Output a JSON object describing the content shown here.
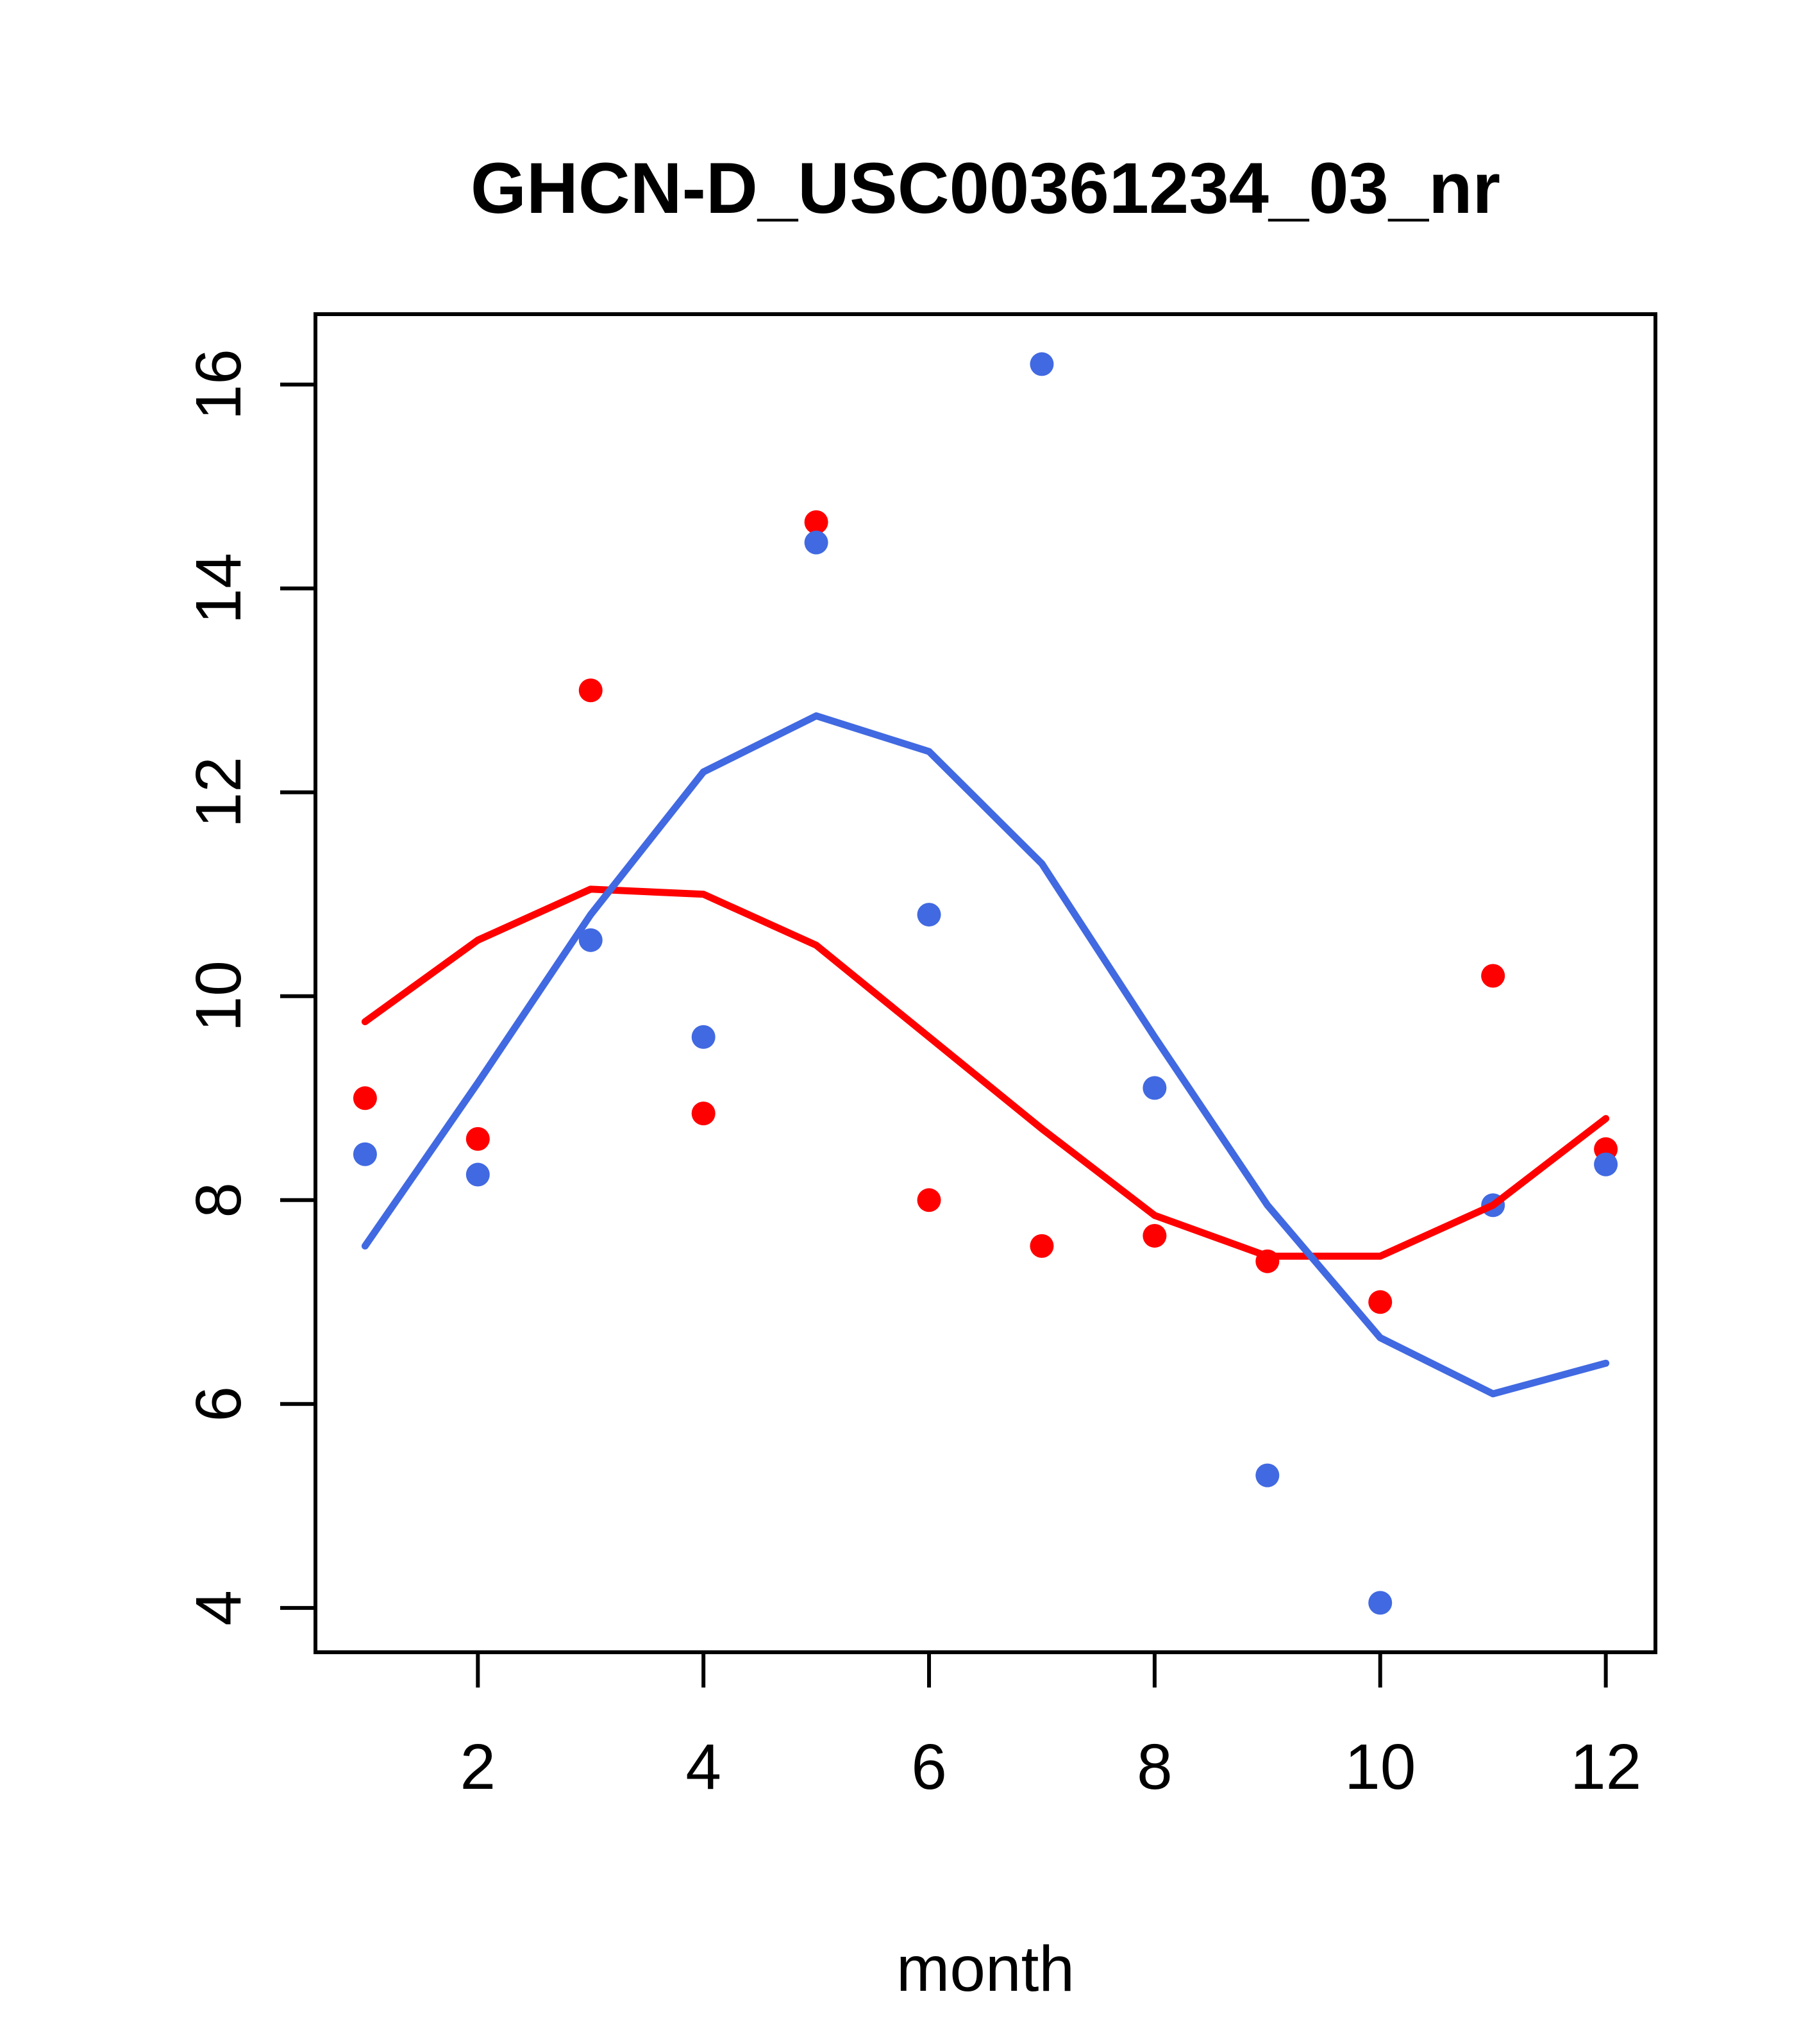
{
  "chart_data": {
    "type": "scatter",
    "title": "GHCN-D_USC00361234_03_nr",
    "xlabel": "month",
    "ylabel": "",
    "x": [
      1,
      2,
      3,
      4,
      5,
      6,
      7,
      8,
      9,
      10,
      11,
      12
    ],
    "x_ticks": [
      2,
      4,
      6,
      8,
      10,
      12
    ],
    "y_ticks": [
      4,
      6,
      8,
      10,
      12,
      14,
      16
    ],
    "xlim": [
      0.56,
      12.44
    ],
    "ylim": [
      3.565,
      16.69
    ],
    "grid": false,
    "legend": null,
    "frame_color": "#000000",
    "series": [
      {
        "name": "red-points",
        "type": "scatter",
        "color": "#ff0000",
        "values": [
          9.0,
          8.6,
          13.0,
          8.85,
          14.65,
          8.0,
          7.55,
          7.65,
          7.4,
          7.0,
          10.2,
          8.5
        ]
      },
      {
        "name": "blue-points",
        "type": "scatter",
        "color": "#4169e1",
        "values": [
          8.45,
          8.25,
          10.55,
          9.6,
          14.45,
          10.8,
          16.2,
          9.1,
          5.3,
          4.05,
          7.95,
          8.35
        ]
      },
      {
        "name": "red-smooth-line",
        "type": "line",
        "color": "#ff0000",
        "values": [
          9.75,
          10.55,
          11.05,
          11.0,
          10.5,
          9.6,
          8.7,
          7.85,
          7.45,
          7.45,
          7.95,
          8.8
        ]
      },
      {
        "name": "blue-smooth-line",
        "type": "line",
        "color": "#4169e1",
        "values": [
          7.55,
          9.15,
          10.8,
          12.2,
          12.75,
          12.4,
          11.3,
          9.6,
          7.95,
          6.65,
          6.1,
          6.4
        ]
      }
    ]
  }
}
